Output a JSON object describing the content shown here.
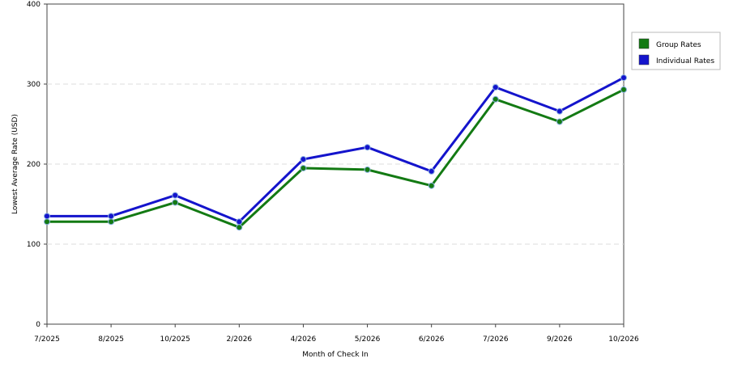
{
  "chart_data": {
    "type": "line",
    "x_label": "Month of Check In",
    "y_label": "Lowest Average Rate (USD)",
    "categories": [
      "7/2025",
      "8/2025",
      "10/2025",
      "2/2026",
      "4/2026",
      "5/2026",
      "6/2026",
      "7/2026",
      "9/2026",
      "10/2026"
    ],
    "series": [
      {
        "name": "Group Rates",
        "color": "#137a13",
        "values": [
          128,
          128,
          152,
          121,
          195,
          193,
          173,
          281,
          253,
          293
        ]
      },
      {
        "name": "Individual Rates",
        "color": "#1414cc",
        "values": [
          135,
          135,
          161,
          128,
          206,
          221,
          191,
          296,
          266,
          308
        ]
      }
    ],
    "ylim": [
      0,
      400
    ],
    "yticks": [
      0,
      100,
      200,
      300,
      400
    ],
    "grid": true
  }
}
